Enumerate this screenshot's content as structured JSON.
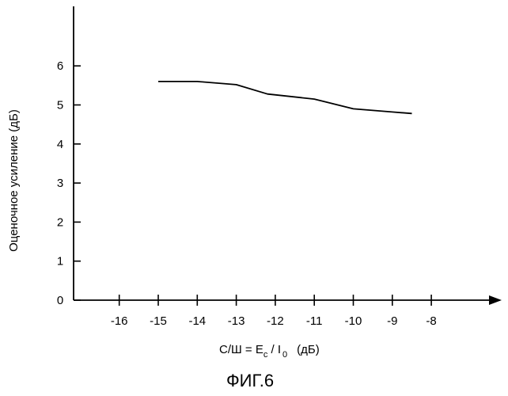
{
  "chart_data": {
    "type": "line",
    "title": "ФИГ.6",
    "ylabel": "Оценочное усиление (дБ)",
    "xlabel": {
      "prefix": "С/Ш = E",
      "sub1": "c",
      "mid": " / I",
      "sub2": "0",
      "unit": "(дБ)"
    },
    "xlim": [
      -17,
      -7.5
    ],
    "ylim": [
      0,
      6.8
    ],
    "x_ticks": [
      -16,
      -15,
      -14,
      -13,
      -12,
      -11,
      -10,
      -9,
      -8
    ],
    "y_ticks": [
      0,
      1,
      2,
      3,
      4,
      5,
      6
    ],
    "grid": false,
    "series": [
      {
        "x": [
          -15,
          -14,
          -13,
          -12.2,
          -11,
          -10,
          -9,
          -8.5
        ],
        "y": [
          5.6,
          5.6,
          5.52,
          5.28,
          5.15,
          4.9,
          4.82,
          4.78
        ]
      }
    ]
  }
}
